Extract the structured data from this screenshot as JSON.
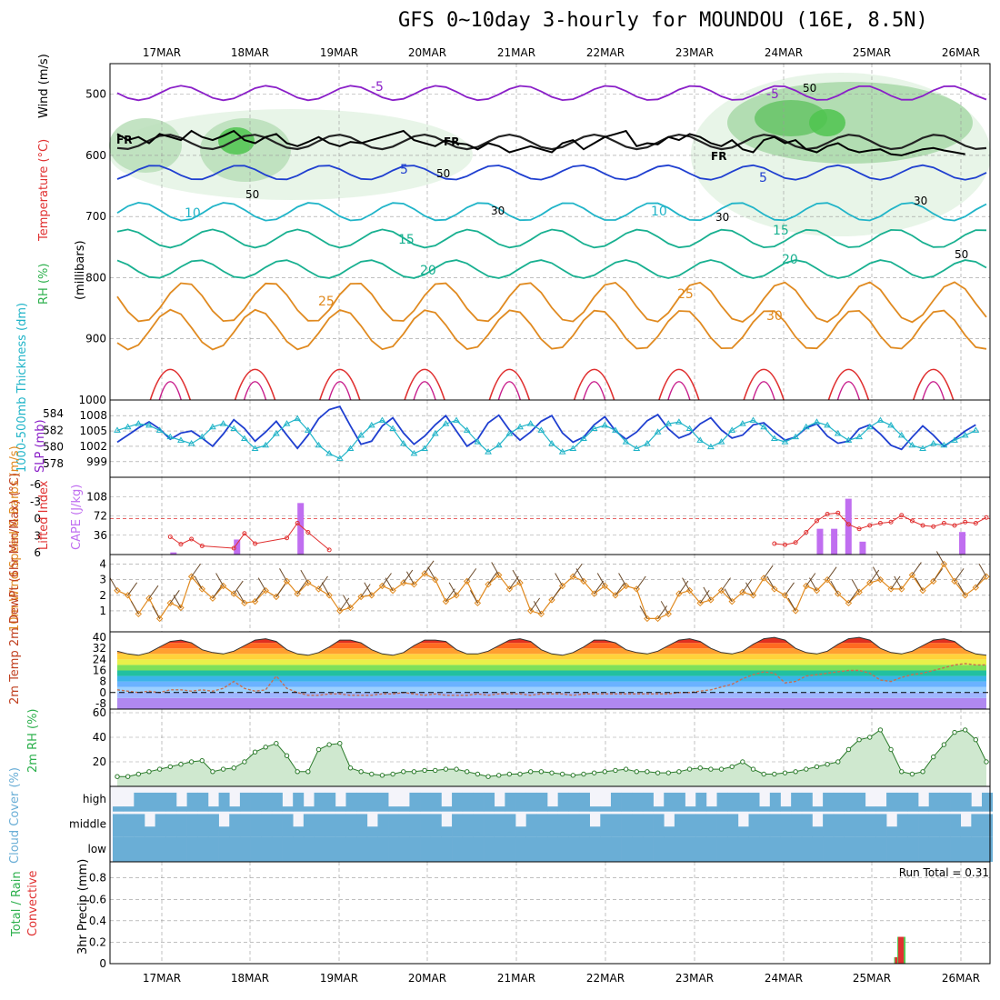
{
  "title": "GFS 0~10day 3-hourly for MOUNDOU (16E, 8.5N)",
  "dates": [
    "17MAR",
    "18MAR",
    "19MAR",
    "20MAR",
    "21MAR",
    "22MAR",
    "23MAR",
    "24MAR",
    "25MAR",
    "26MAR"
  ],
  "colors": {
    "purple": "#8a1fc8",
    "blue": "#1f3fd0",
    "cyan": "#20b4c8",
    "teal": "#18b090",
    "green": "#2cb04c",
    "orange": "#e08a20",
    "red": "#e03030",
    "rhgreen": "#55cc55",
    "cloud": "#6aaed6",
    "cape": "#c06ef0"
  },
  "chart_data": [
    {
      "type": "contour",
      "name": "upper_air",
      "ylabel_parts": [
        "RH (%)",
        "Temperature (°C)",
        "Wind (m/s)",
        "(millibars)"
      ],
      "y_ticks": [
        "500",
        "600",
        "700",
        "800",
        "900",
        "1000"
      ],
      "ylim": [
        450,
        1000
      ],
      "freezing_label": "FR",
      "freezing_level_mb": [
        565,
        575,
        570,
        580,
        565,
        570,
        575,
        560,
        570,
        575,
        568,
        560,
        575,
        580,
        570,
        565,
        580,
        585,
        578,
        570,
        580,
        585,
        578,
        580,
        575,
        570,
        565,
        560,
        575,
        580,
        585,
        575,
        580,
        582,
        590,
        580,
        585,
        595,
        590,
        585,
        590,
        595,
        580,
        575,
        590,
        580,
        570,
        565,
        560,
        585,
        580,
        582,
        570,
        575,
        565,
        570,
        580,
        585,
        575,
        590,
        595,
        575,
        570,
        580,
        575,
        590,
        595,
        585,
        580,
        590,
        595,
        592,
        590,
        598,
        600,
        595,
        590,
        588,
        592,
        595,
        598
      ],
      "temperature_labels": [
        {
          "text": "-5",
          "c": "purple"
        },
        {
          "text": "-5",
          "c": "purple"
        },
        {
          "text": "5",
          "c": "blue"
        },
        {
          "text": "5",
          "c": "blue"
        },
        {
          "text": "10",
          "c": "cyan"
        },
        {
          "text": "10",
          "c": "cyan"
        },
        {
          "text": "15",
          "c": "teal"
        },
        {
          "text": "15",
          "c": "teal"
        },
        {
          "text": "20",
          "c": "teal"
        },
        {
          "text": "20",
          "c": "teal"
        },
        {
          "text": "25",
          "c": "orange"
        },
        {
          "text": "25",
          "c": "orange"
        },
        {
          "text": "30",
          "c": "orange"
        }
      ],
      "rh_labels": [
        "50",
        "50",
        "50",
        "30",
        "30",
        "30",
        "50"
      ]
    },
    {
      "type": "line",
      "name": "thickness_slp",
      "ylabel_left": "1000-500mb Thickness (dm)",
      "ylabel_right": "SLP (mb)",
      "thickness_ticks": [
        "584",
        "582",
        "580",
        "578"
      ],
      "slp_ticks": [
        "1008",
        "1005",
        "1002",
        "999"
      ],
      "thickness_range": [
        577,
        585
      ],
      "slp_range": [
        997,
        1010
      ],
      "slp_values": [
        1002.8,
        1004.2,
        1005.6,
        1006.8,
        1005.4,
        1003.4,
        1004.6,
        1005.0,
        1003.6,
        1002.0,
        1004.4,
        1007.2,
        1005.5,
        1003.0,
        1004.8,
        1006.9,
        1004.2,
        1001.6,
        1004.2,
        1007.4,
        1009.2,
        1009.8,
        1006.0,
        1002.4,
        1003.0,
        1006.0,
        1007.6,
        1004.6,
        1002.4,
        1004.0,
        1006.2,
        1008.0,
        1005.0,
        1002.0,
        1003.4,
        1006.6,
        1008.1,
        1005.2,
        1003.2,
        1004.8,
        1006.9,
        1008.0,
        1004.6,
        1002.8,
        1003.8,
        1006.2,
        1007.8,
        1005.0,
        1003.4,
        1004.8,
        1007.0,
        1008.2,
        1005.4,
        1003.6,
        1004.4,
        1006.4,
        1007.6,
        1005.2,
        1003.6,
        1004.2,
        1006.2,
        1006.6,
        1004.8,
        1003.2,
        1003.8,
        1005.6,
        1006.4,
        1004.0,
        1002.6,
        1003.0,
        1005.4,
        1006.2,
        1004.4,
        1002.2,
        1001.4,
        1003.8,
        1006.0,
        1004.2,
        1002.0,
        1003.4,
        1005.0,
        1006.2
      ],
      "thickness_values": [
        582.0,
        582.4,
        582.8,
        582.6,
        582.0,
        581.2,
        580.8,
        580.4,
        581.2,
        582.4,
        582.8,
        582.2,
        581.0,
        579.8,
        580.2,
        581.6,
        582.8,
        583.4,
        582.0,
        580.2,
        579.2,
        578.6,
        579.8,
        581.4,
        582.6,
        583.2,
        582.2,
        580.4,
        579.2,
        579.8,
        581.6,
        582.8,
        583.2,
        582.0,
        580.6,
        579.4,
        580.2,
        581.6,
        582.4,
        582.8,
        582.0,
        580.4,
        579.4,
        579.8,
        581.0,
        582.2,
        582.6,
        582.0,
        580.6,
        579.8,
        580.4,
        581.8,
        582.8,
        583.0,
        582.2,
        580.8,
        580.0,
        580.6,
        582.0,
        582.8,
        583.2,
        582.4,
        581.0,
        580.6,
        581.2,
        582.4,
        583.0,
        582.6,
        581.6,
        580.8,
        581.2,
        582.4,
        583.2,
        582.6,
        581.4,
        580.2,
        579.8,
        580.4,
        580.2,
        580.8,
        581.4,
        582.0
      ]
    },
    {
      "type": "bar+line",
      "name": "cape_li",
      "ylabel_left": "Lifted Index",
      "ylabel_right": "CAPE (J/kg)",
      "li_ticks": [
        "-6",
        "-3",
        "0",
        "3",
        "6"
      ],
      "cape_ticks": [
        "108",
        "72",
        "36"
      ],
      "li_range": [
        -6,
        6
      ],
      "cape_range": [
        0,
        144
      ],
      "cape_values": [
        0,
        0,
        0,
        0,
        0,
        0,
        0,
        0,
        0,
        0,
        0,
        0,
        0,
        0,
        0,
        0,
        0,
        0,
        0,
        0,
        0,
        0,
        0,
        0,
        0,
        0,
        0,
        0,
        0,
        0,
        0,
        0,
        0,
        0,
        0,
        0,
        0,
        0,
        0,
        0,
        0,
        0,
        0,
        0,
        0,
        0,
        0,
        0,
        0,
        0,
        0,
        0,
        0,
        0,
        0,
        0,
        0,
        0,
        0,
        0,
        0,
        0,
        0,
        0,
        0,
        0,
        0,
        0,
        0,
        0,
        0,
        0,
        0,
        0,
        0,
        0,
        0,
        0,
        0,
        0,
        0,
        0
      ],
      "li_values": [
        null,
        null,
        null,
        null,
        null,
        null,
        null,
        null,
        null,
        null,
        null,
        null,
        null,
        null,
        null,
        null,
        null,
        null,
        null,
        null,
        null,
        null,
        null,
        null,
        null,
        null,
        null,
        null,
        null,
        null,
        null,
        null,
        null,
        null,
        null,
        null,
        null,
        null,
        null,
        null,
        null,
        null,
        null,
        null,
        null,
        null,
        null,
        null,
        null,
        null,
        null,
        null,
        null,
        null,
        null,
        null,
        null,
        null,
        null,
        null,
        null,
        null,
        null,
        null,
        null,
        null,
        null,
        null,
        null,
        null,
        null,
        null,
        null,
        null,
        null,
        null,
        null,
        null,
        null,
        null,
        null,
        null
      ]
    },
    {
      "type": "line",
      "name": "wind10m",
      "ylabel": "10m Wind Speed & Barbs (m/s)",
      "y_ticks": [
        "4",
        "3",
        "2",
        "1"
      ],
      "ylim": [
        0,
        4.5
      ],
      "values": [
        2.3,
        2.0,
        0.8,
        1.8,
        0.5,
        1.5,
        1.2,
        3.2,
        2.4,
        1.8,
        2.6,
        2.1,
        1.5,
        1.6,
        2.3,
        1.9,
        2.9,
        2.1,
        2.8,
        2.4,
        2.0,
        1.0,
        1.2,
        1.9,
        2.0,
        2.6,
        2.3,
        2.8,
        2.7,
        3.4,
        3.0,
        1.6,
        2.0,
        2.9,
        1.5,
        2.7,
        3.3,
        2.4,
        2.8,
        1.0,
        0.8,
        1.7,
        2.6,
        3.2,
        2.9,
        2.1,
        2.6,
        2.0,
        2.6,
        2.4,
        0.5,
        0.5,
        0.8,
        2.1,
        2.3,
        1.5,
        1.7,
        2.3,
        1.6,
        2.2,
        2.0,
        3.1,
        2.4,
        2.0,
        1.0,
        2.6,
        2.3,
        3.0,
        2.1,
        1.5,
        2.2,
        2.8,
        3.0,
        2.4,
        2.4,
        3.3,
        2.3,
        2.9,
        4.0,
        2.9,
        2.0,
        2.5,
        3.2
      ]
    },
    {
      "type": "area+line",
      "name": "temp2m",
      "ylabel": "2m Temp 2m DewPt (6hr Min/Max) (°C)",
      "y_ticks": [
        "40",
        "32",
        "24",
        "16",
        "8",
        "0",
        "-8"
      ],
      "ylim": [
        -12,
        44
      ],
      "temp_values": [
        30,
        28,
        27,
        29,
        33,
        37,
        38,
        36,
        31,
        29,
        28,
        30,
        34,
        38,
        39,
        37,
        31,
        28,
        27,
        29,
        33,
        38,
        38,
        36,
        31,
        28,
        27,
        29,
        34,
        38,
        38,
        37,
        31,
        28,
        28,
        30,
        34,
        38,
        39,
        37,
        31,
        28,
        27,
        29,
        33,
        38,
        38,
        36,
        31,
        29,
        28,
        30,
        34,
        38,
        39,
        37,
        32,
        29,
        28,
        30,
        35,
        39,
        40,
        38,
        32,
        29,
        28,
        30,
        35,
        39,
        40,
        38,
        32,
        29,
        28,
        30,
        34,
        38,
        39,
        37,
        31,
        28,
        27,
        27
      ],
      "dew_values": [
        0,
        0,
        0,
        0,
        0,
        0,
        0,
        0,
        0,
        0,
        0,
        0,
        0,
        0,
        0,
        0,
        0,
        0,
        0,
        0,
        0,
        0,
        0,
        0,
        0,
        0,
        0,
        0,
        0,
        0,
        0,
        0,
        0,
        0,
        0,
        0,
        0,
        0,
        0,
        0,
        0,
        0,
        0,
        0,
        0,
        0,
        0,
        0,
        0,
        0,
        0,
        0,
        0,
        0,
        0,
        0,
        0,
        0,
        0,
        0,
        0,
        0,
        0,
        0,
        0,
        0,
        0,
        0,
        0,
        0,
        0,
        0,
        0,
        0,
        0,
        0,
        0,
        0,
        0,
        0,
        0,
        0,
        0,
        0,
        0
      ]
    },
    {
      "type": "area",
      "name": "rh2m",
      "ylabel": "2m RH (%)",
      "y_ticks": [
        "60",
        "40",
        "20"
      ],
      "ylim": [
        0,
        60
      ],
      "values": [
        8,
        8,
        10,
        12,
        14,
        16,
        18,
        20,
        21,
        12,
        14,
        15,
        20,
        28,
        32,
        35,
        25,
        12,
        12,
        30,
        34,
        35,
        15,
        12,
        10,
        9,
        10,
        12,
        12,
        13,
        13,
        14,
        14,
        12,
        10,
        8,
        9,
        10,
        10,
        12,
        12,
        11,
        10,
        9,
        10,
        11,
        12,
        13,
        14,
        12,
        12,
        11,
        11,
        12,
        14,
        15,
        14,
        14,
        16,
        20,
        14,
        10,
        10,
        11,
        12,
        14,
        16,
        18,
        20,
        30,
        38,
        40,
        46,
        30,
        12,
        10,
        12,
        24,
        34,
        44,
        46,
        38,
        20,
        12,
        10,
        14,
        24,
        34,
        46,
        56,
        59
      ]
    },
    {
      "type": "heatmap",
      "name": "cloud_cover",
      "ylabel": "Cloud Cover (%)",
      "rows": [
        "high",
        "middle",
        "low"
      ]
    },
    {
      "type": "bar",
      "name": "precip3hr",
      "ylabel": "3hr Precip (mm)",
      "legend_left": "Total / Rain",
      "legend_right": "Convective",
      "y_ticks": [
        "0.8",
        "0.6",
        "0.4",
        "0.2",
        "0"
      ],
      "ylim": [
        0,
        0.95
      ],
      "run_total_label": "Run Total = 0.31",
      "bars": [
        {
          "x": 73.3,
          "total": 0.06,
          "conv": 0.06
        },
        {
          "x": 73.6,
          "total": 0.25,
          "conv": 0.25
        }
      ]
    }
  ]
}
